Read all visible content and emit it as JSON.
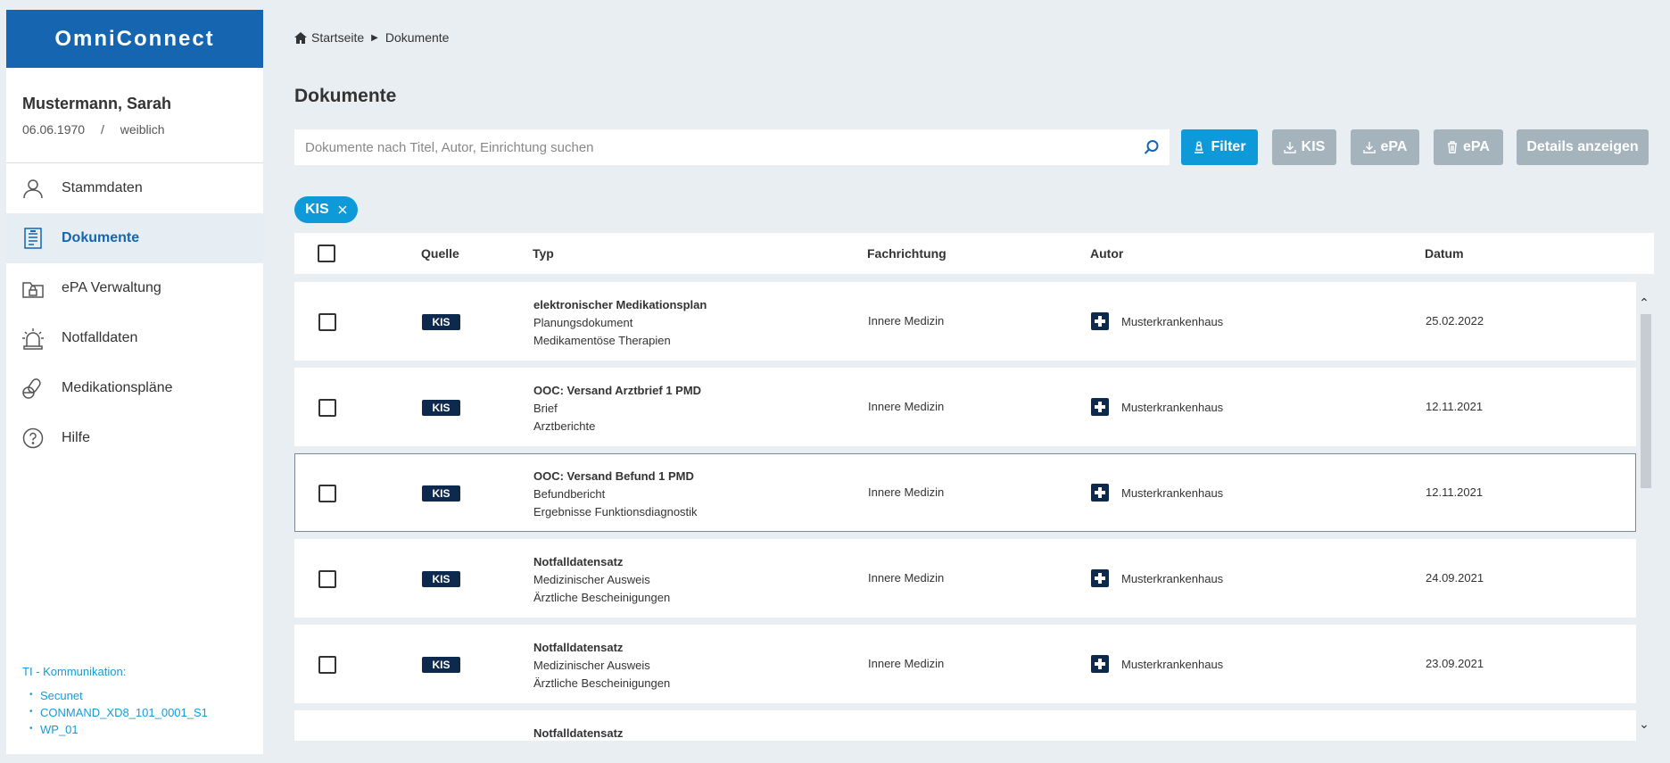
{
  "app": {
    "title": "OmniConnect"
  },
  "patient": {
    "name": "Mustermann, Sarah",
    "birthdate": "06.06.1970",
    "separator": "/",
    "gender": "weiblich"
  },
  "nav": {
    "items": [
      {
        "label": "Stammdaten",
        "icon": "person-icon",
        "active": false
      },
      {
        "label": "Dokumente",
        "icon": "document-icon",
        "active": true
      },
      {
        "label": "ePA Verwaltung",
        "icon": "lock-folder-icon",
        "active": false
      },
      {
        "label": "Notfalldaten",
        "icon": "siren-icon",
        "active": false
      },
      {
        "label": "Medikationspläne",
        "icon": "pills-icon",
        "active": false
      },
      {
        "label": "Hilfe",
        "icon": "help-icon",
        "active": false
      }
    ]
  },
  "ti": {
    "title": "TI - Kommunikation:",
    "items": [
      "Secunet",
      "CONMAND_XD8_101_0001_S1",
      "WP_01"
    ]
  },
  "breadcrumb": {
    "home": "Startseite",
    "current": "Dokumente"
  },
  "page": {
    "title": "Dokumente"
  },
  "search": {
    "placeholder": "Dokumente nach Titel, Autor, Einrichtung suchen",
    "value": ""
  },
  "toolbar": {
    "filter": "Filter",
    "kis": "KIS",
    "epa_download": "ePA",
    "epa_delete": "ePA",
    "details": "Details anzeigen"
  },
  "active_filter": {
    "label": "KIS"
  },
  "table": {
    "headers": {
      "quelle": "Quelle",
      "typ": "Typ",
      "fachrichtung": "Fachrichtung",
      "autor": "Autor",
      "datum": "Datum"
    },
    "rows": [
      {
        "quelle": "KIS",
        "title": "elektronischer Medikationsplan",
        "line2": "Planungsdokument",
        "line3": "Medikamentöse Therapien",
        "fachrichtung": "Innere Medizin",
        "autor": "Musterkrankenhaus",
        "datum": "25.02.2022",
        "selected": false
      },
      {
        "quelle": "KIS",
        "title": "OOC: Versand Arztbrief 1 PMD",
        "line2": "Brief",
        "line3": "Arztberichte",
        "fachrichtung": "Innere Medizin",
        "autor": "Musterkrankenhaus",
        "datum": "12.11.2021",
        "selected": false
      },
      {
        "quelle": "KIS",
        "title": "OOC: Versand Befund 1 PMD",
        "line2": "Befundbericht",
        "line3": "Ergebnisse Funktionsdiagnostik",
        "fachrichtung": "Innere Medizin",
        "autor": "Musterkrankenhaus",
        "datum": "12.11.2021",
        "selected": true
      },
      {
        "quelle": "KIS",
        "title": "Notfalldatensatz",
        "line2": "Medizinischer Ausweis",
        "line3": "Ärztliche Bescheinigungen",
        "fachrichtung": "Innere Medizin",
        "autor": "Musterkrankenhaus",
        "datum": "24.09.2021",
        "selected": false
      },
      {
        "quelle": "KIS",
        "title": "Notfalldatensatz",
        "line2": "Medizinischer Ausweis",
        "line3": "Ärztliche Bescheinigungen",
        "fachrichtung": "Innere Medizin",
        "autor": "Musterkrankenhaus",
        "datum": "23.09.2021",
        "selected": false
      },
      {
        "quelle": "",
        "title": "Notfalldatensatz",
        "line2": "",
        "line3": "",
        "fachrichtung": "",
        "autor": "",
        "datum": "",
        "selected": false
      }
    ]
  },
  "colors": {
    "brand": "#1565b0",
    "accent": "#0e9ad8",
    "badge": "#0d2a4e",
    "disabled": "#a5b3bd"
  }
}
